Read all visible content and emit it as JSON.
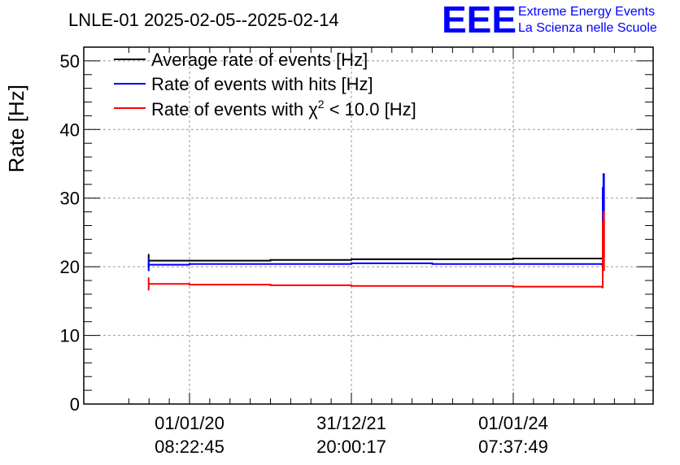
{
  "chart_data": {
    "type": "line",
    "title": "LNLE-01 2025-02-05--2025-02-14",
    "xlabel": "",
    "ylabel": "Rate [Hz]",
    "ylim": [
      0,
      52
    ],
    "yticks": [
      "0",
      "10",
      "20",
      "30",
      "40",
      "50"
    ],
    "xticks": [
      {
        "date": "01/01/20",
        "time": "08:22:45"
      },
      {
        "date": "31/12/21",
        "time": "20:00:17"
      },
      {
        "date": "01/01/24",
        "time": "07:37:49"
      }
    ],
    "grid": true,
    "legend_position": "top-left",
    "series": [
      {
        "name": "Average rate of events [Hz]",
        "color": "#000000",
        "x": [
          "2019-07-01",
          "2020-01-01",
          "2021-01-01",
          "2022-01-01",
          "2023-01-01",
          "2024-01-01",
          "2025-02-05",
          "2025-02-08",
          "2025-02-11",
          "2025-02-14"
        ],
        "values": [
          20.9,
          20.9,
          21.0,
          21.1,
          21.1,
          21.2,
          21.2,
          28.0,
          24.0,
          21.5
        ]
      },
      {
        "name": "Rate of events with hits [Hz]",
        "color": "#0000ff",
        "x": [
          "2019-07-01",
          "2020-01-01",
          "2021-01-01",
          "2022-01-01",
          "2023-01-01",
          "2024-01-01",
          "2025-02-05",
          "2025-02-08",
          "2025-02-11",
          "2025-02-14"
        ],
        "values": [
          20.3,
          20.4,
          20.4,
          20.5,
          20.4,
          20.4,
          20.3,
          31.5,
          33.5,
          24.0
        ]
      },
      {
        "name": "Rate of events with χ² < 10.0 [Hz]",
        "color": "#ff0000",
        "x": [
          "2019-07-01",
          "2020-01-01",
          "2021-01-01",
          "2022-01-01",
          "2023-01-01",
          "2024-01-01",
          "2025-02-05",
          "2025-02-08",
          "2025-02-11",
          "2025-02-14"
        ],
        "values": [
          17.5,
          17.4,
          17.3,
          17.2,
          17.2,
          17.1,
          17.0,
          26.5,
          28.0,
          19.5
        ]
      }
    ]
  },
  "legend": {
    "entries": [
      {
        "label": "Average rate of events [Hz]",
        "color": "#000000"
      },
      {
        "label": "Rate of events with hits [Hz]",
        "color": "#0000ff"
      },
      {
        "label_prefix": "Rate of events with ",
        "label_chi": "χ",
        "label_sup": "2",
        "label_suffix": " < 10.0 [Hz]",
        "color": "#ff0000"
      }
    ]
  },
  "logo": {
    "mark": "EEE",
    "line1": "Extreme Energy Events",
    "line2": "La Scienza nelle Scuole",
    "color": "#0000ff"
  }
}
